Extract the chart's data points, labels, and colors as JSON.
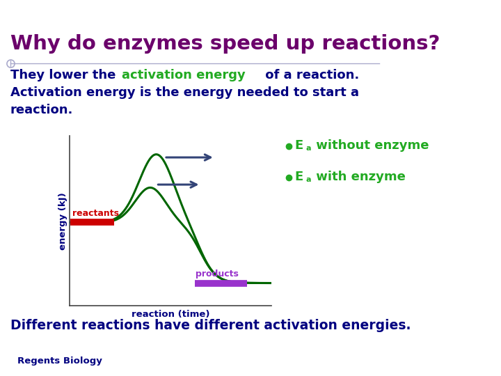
{
  "title": "Why do enzymes speed up reactions?",
  "title_color": "#6b006b",
  "title_fontsize": 21,
  "bg_color": "#ffffff",
  "top_bar_color": "#2e3580",
  "body_text_color": "#000080",
  "body_green_color": "#22aa22",
  "ylabel": "energy (kJ)",
  "xlabel": "reaction (time)",
  "axis_label_color": "#000080",
  "curve_color": "#006600",
  "reactants_color": "#cc0000",
  "products_color": "#9933cc",
  "reactants_label": "reactants",
  "products_label": "products",
  "ea_without_label": "E  without enzyme",
  "ea_with_label": "E  with enzyme",
  "ea_label_color": "#22aa22",
  "arrow_color": "#334477",
  "bottom_text": "Different reactions have different activation energies.",
  "bottom_text_color": "#000080",
  "footer_text": "Regents Biology",
  "footer_color": "#000080",
  "line_color": "#aaaacc"
}
